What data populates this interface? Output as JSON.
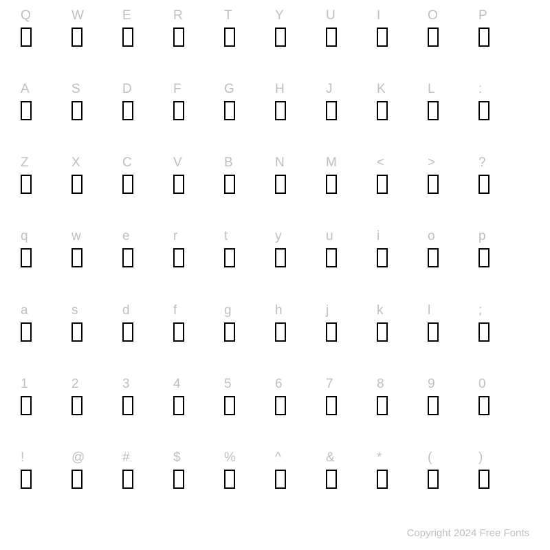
{
  "grid": {
    "rows": [
      [
        "Q",
        "W",
        "E",
        "R",
        "T",
        "Y",
        "U",
        "I",
        "O",
        "P"
      ],
      [
        "A",
        "S",
        "D",
        "F",
        "G",
        "H",
        "J",
        "K",
        "L",
        ":"
      ],
      [
        "Z",
        "X",
        "C",
        "V",
        "B",
        "N",
        "M",
        "<",
        ">",
        "?"
      ],
      [
        "q",
        "w",
        "e",
        "r",
        "t",
        "y",
        "u",
        "i",
        "o",
        "p"
      ],
      [
        "a",
        "s",
        "d",
        "f",
        "g",
        "h",
        "j",
        "k",
        "l",
        ";"
      ],
      [
        "1",
        "2",
        "3",
        "4",
        "5",
        "6",
        "7",
        "8",
        "9",
        "0"
      ],
      [
        "!",
        "@",
        "#",
        "$",
        "%",
        "^",
        "&",
        "*",
        "(",
        ")"
      ]
    ],
    "label_color": "#bfbfbf",
    "label_fontsize": 19,
    "glyph_box": {
      "width": 16,
      "height": 28,
      "border_color": "#000000",
      "border_width": 2
    },
    "background_color": "#ffffff",
    "columns": 10,
    "row_count": 7
  },
  "footer": {
    "text": "Copyright 2024 Free Fonts",
    "color": "#bfbfbf",
    "fontsize": 15
  }
}
